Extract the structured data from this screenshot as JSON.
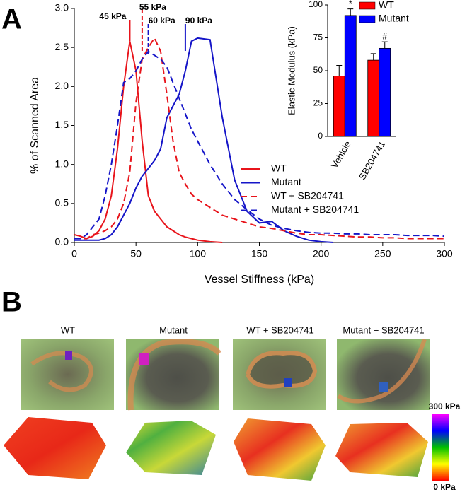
{
  "panel_labels": [
    "A",
    "B"
  ],
  "chart_data": [
    {
      "type": "line",
      "x_label": "Vessel Stiffness (kPa)",
      "y_label": "% of Scanned Area",
      "xlim": [
        0,
        300
      ],
      "xticks": [
        0,
        50,
        100,
        150,
        200,
        250,
        300
      ],
      "ylim": [
        0,
        3
      ],
      "yticks": [
        {
          "value": 0,
          "label": "0.0"
        },
        0.5,
        {
          "value": 1,
          "label": "1.0"
        },
        1.5,
        {
          "value": 2,
          "label": "2.0"
        },
        2.5,
        {
          "value": 3,
          "label": "3.0"
        }
      ],
      "legend": "right",
      "x": [
        0,
        5,
        10,
        15,
        20,
        25,
        30,
        35,
        40,
        45,
        50,
        55,
        60,
        65,
        70,
        75,
        80,
        85,
        90,
        95,
        100,
        110,
        120,
        130,
        140,
        150,
        160,
        170,
        180,
        190,
        200,
        210,
        220,
        230,
        240,
        250,
        260,
        270,
        280,
        290,
        300
      ],
      "series": [
        {
          "name": "WT",
          "color": "#e8141b",
          "dashed": false,
          "values": [
            0.1,
            0.08,
            0.05,
            0.08,
            0.15,
            0.3,
            0.6,
            1.2,
            2.0,
            2.58,
            2.2,
            1.3,
            0.6,
            0.4,
            0.3,
            0.2,
            0.15,
            0.1,
            0.07,
            0.05,
            0.03,
            0.01,
            0.0,
            null,
            null,
            null,
            null,
            null,
            null,
            null,
            null,
            null,
            null,
            null,
            null,
            null,
            null,
            null,
            null,
            null,
            null
          ]
        },
        {
          "name": "Mutant",
          "color": "#1515c8",
          "dashed": false,
          "values": [
            0.03,
            0.03,
            0.03,
            0.03,
            0.03,
            0.05,
            0.1,
            0.2,
            0.35,
            0.5,
            0.7,
            0.85,
            0.95,
            1.05,
            1.2,
            1.6,
            1.75,
            1.9,
            2.2,
            2.58,
            2.62,
            2.6,
            1.6,
            0.8,
            0.4,
            0.25,
            0.27,
            0.15,
            0.08,
            0.03,
            0.01,
            0.0,
            null,
            null,
            null,
            null,
            null,
            null,
            null,
            null,
            null
          ]
        },
        {
          "name": "WT + SB204741",
          "color": "#e8141b",
          "dashed": true,
          "values": [
            0.05,
            0.05,
            0.05,
            0.1,
            0.12,
            0.15,
            0.2,
            0.3,
            0.5,
            0.9,
            1.8,
            2.35,
            2.5,
            2.62,
            2.45,
            1.9,
            1.3,
            0.9,
            0.75,
            0.62,
            0.55,
            0.45,
            0.35,
            0.3,
            0.25,
            0.2,
            0.18,
            0.15,
            0.12,
            0.1,
            0.1,
            0.09,
            0.08,
            0.07,
            0.07,
            0.06,
            0.06,
            0.05,
            0.05,
            0.05,
            0.05
          ]
        },
        {
          "name": "Mutant + SB204741",
          "color": "#1515c8",
          "dashed": true,
          "values": [
            0.05,
            0.05,
            0.1,
            0.2,
            0.3,
            0.6,
            1.0,
            1.5,
            2.05,
            2.1,
            2.2,
            2.35,
            2.45,
            2.4,
            2.35,
            2.25,
            2.05,
            1.85,
            1.65,
            1.45,
            1.3,
            1.0,
            0.75,
            0.55,
            0.42,
            0.3,
            0.22,
            0.18,
            0.15,
            0.13,
            0.12,
            0.12,
            0.11,
            0.11,
            0.1,
            0.1,
            0.1,
            0.09,
            0.09,
            0.09,
            0.08
          ]
        }
      ],
      "annotations": [
        {
          "text": "45 kPa",
          "x": 45,
          "color": "#e8141b",
          "dashed": false
        },
        {
          "text": "55 kPa",
          "x": 55,
          "color": "#e8141b",
          "dashed": true
        },
        {
          "text": "60 kPa",
          "x": 60,
          "color": "#1515c8",
          "dashed": true
        },
        {
          "text": "90 kPa",
          "x": 90,
          "color": "#1515c8",
          "dashed": false
        }
      ]
    },
    {
      "type": "bar",
      "y_label": "Elastic Modulus (kPa)",
      "categories": [
        "Vehicle",
        "SB204741"
      ],
      "ylim": [
        0,
        100
      ],
      "yticks": [
        0,
        25,
        50,
        75,
        100
      ],
      "legend": "top right",
      "series": [
        {
          "name": "WT",
          "color": "#ff0000",
          "values": [
            46,
            58
          ],
          "errors": [
            8,
            5
          ]
        },
        {
          "name": "Mutant",
          "color": "#0000ff",
          "values": [
            92,
            67
          ],
          "errors": [
            5,
            5
          ],
          "significance": [
            "*",
            "#"
          ]
        }
      ]
    }
  ],
  "images": {
    "titles": [
      "WT",
      "Mutant",
      "WT + SB204741",
      "Mutant + SB204741"
    ],
    "colorbar": {
      "max_label": "300 kPa",
      "min_label": "0 kPa"
    }
  }
}
